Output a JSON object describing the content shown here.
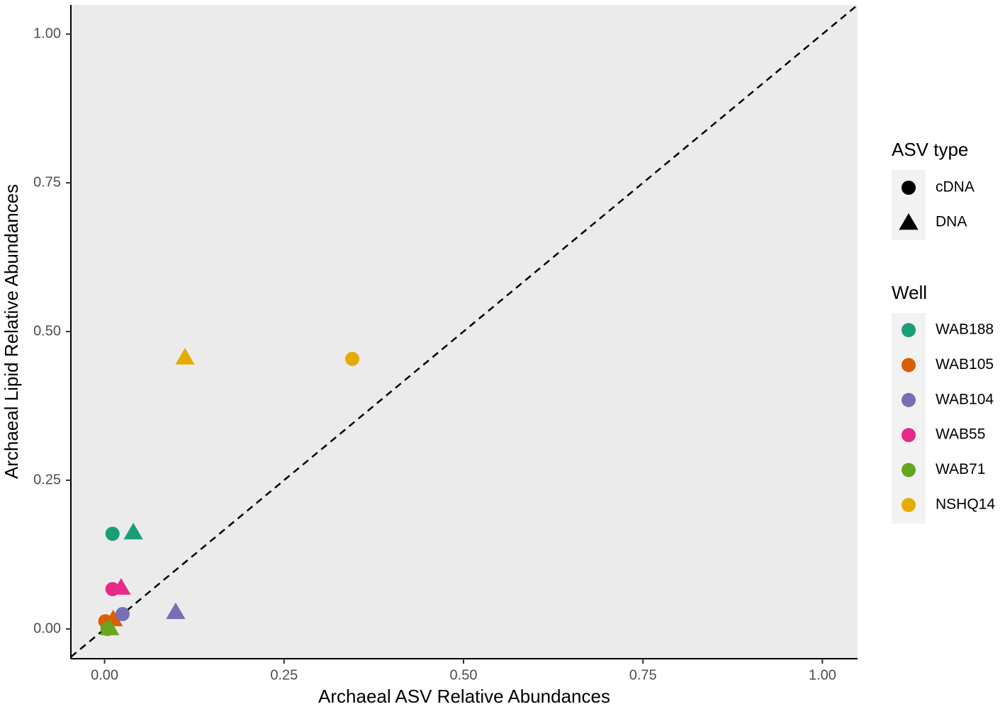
{
  "chart_data": {
    "type": "scatter",
    "x_label": "Archaeal ASV Relative Abundances",
    "y_label": "Archaeal Lipid Relative Abundances",
    "xlim": [
      -0.047,
      1.049
    ],
    "ylim": [
      -0.05,
      1.049
    ],
    "xticks": [
      {
        "value": 0,
        "label": "0.00"
      },
      {
        "value": 0.25,
        "label": "0.25"
      },
      {
        "value": 0.5,
        "label": "0.50"
      },
      {
        "value": 0.75,
        "label": "0.75"
      },
      {
        "value": 1,
        "label": "1.00"
      }
    ],
    "yticks": [
      {
        "value": 0,
        "label": "0.00"
      },
      {
        "value": 0.25,
        "label": "0.25"
      },
      {
        "value": 0.5,
        "label": "0.50"
      },
      {
        "value": 0.75,
        "label": "0.75"
      },
      {
        "value": 1,
        "label": "1.00"
      }
    ],
    "identity_line": "dashed",
    "shape_legend": {
      "title": "ASV type",
      "items": [
        "cDNA",
        "DNA"
      ],
      "shapes": [
        "circle",
        "triangle"
      ]
    },
    "legend_title": "Well",
    "series": [
      {
        "name": "WAB188",
        "color": "#1b9e77",
        "x": [
          0.011,
          0.04
        ],
        "values": [
          0.16,
          0.163
        ]
      },
      {
        "name": "WAB105",
        "color": "#d95f02",
        "x": [
          0.001,
          0.012
        ],
        "values": [
          0.013,
          0.017
        ]
      },
      {
        "name": "WAB104",
        "color": "#7570b3",
        "x": [
          0.025,
          0.099
        ],
        "values": [
          0.025,
          0.029
        ]
      },
      {
        "name": "WAB55",
        "color": "#e7298a",
        "x": [
          0.011,
          0.023
        ],
        "values": [
          0.067,
          0.07
        ]
      },
      {
        "name": "WAB71",
        "color": "#66a61e",
        "x": [
          0.004,
          0.007
        ],
        "values": [
          0.0,
          0.002
        ]
      },
      {
        "name": "NSHQ14",
        "color": "#e6ab02",
        "x": [
          0.345,
          0.112
        ],
        "values": [
          0.454,
          0.457
        ]
      }
    ]
  }
}
